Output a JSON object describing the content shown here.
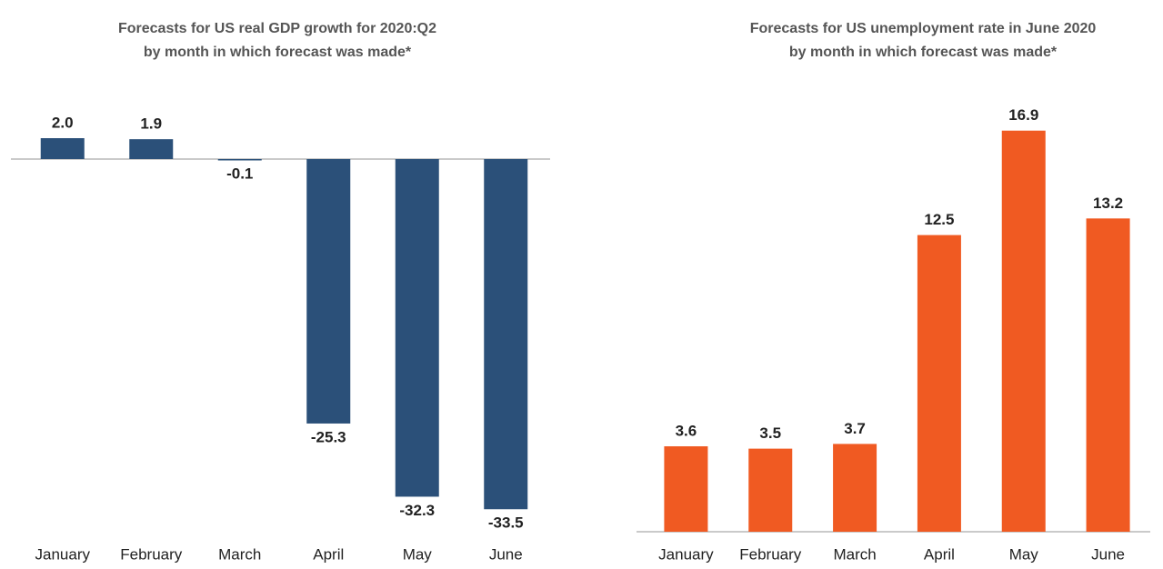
{
  "chart_data": [
    {
      "type": "bar",
      "title": "Forecasts for US real GDP growth for 2020:Q2",
      "subtitle": "by month in which forecast was made*",
      "categories": [
        "January",
        "February",
        "March",
        "April",
        "May",
        "June"
      ],
      "values": [
        2.0,
        1.9,
        -0.1,
        -25.3,
        -32.3,
        -33.5
      ],
      "value_labels": [
        "2.0",
        "1.9",
        "-0.1",
        "-25.3",
        "-32.3",
        "-33.5"
      ],
      "color": "#2b5079",
      "ylim": [
        -37,
        4
      ]
    },
    {
      "type": "bar",
      "title": "Forecasts for US unemployment rate in June 2020",
      "subtitle": "by month in which forecast was made*",
      "categories": [
        "January",
        "February",
        "March",
        "April",
        "May",
        "June"
      ],
      "values": [
        3.6,
        3.5,
        3.7,
        12.5,
        16.9,
        13.2
      ],
      "value_labels": [
        "3.6",
        "3.5",
        "3.7",
        "12.5",
        "16.9",
        "13.2"
      ],
      "color": "#f05a22",
      "ylim": [
        0,
        18
      ]
    }
  ]
}
